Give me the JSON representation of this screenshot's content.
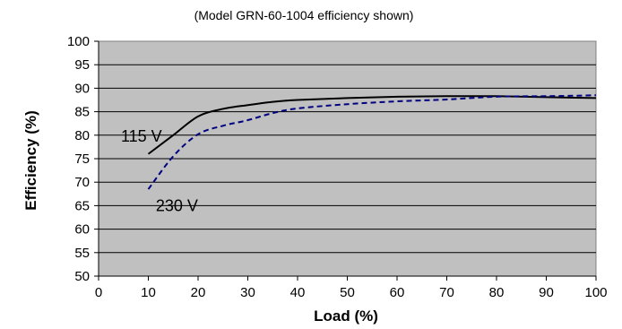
{
  "chart_data": {
    "type": "line",
    "title": "",
    "subtitle": "(Model GRN-60-1004 efficiency shown)",
    "xlabel": "Load (%)",
    "ylabel": "Efficiency (%)",
    "xlim": [
      0,
      100
    ],
    "ylim": [
      50,
      100
    ],
    "x_ticks": [
      0,
      10,
      20,
      30,
      40,
      50,
      60,
      70,
      80,
      90,
      100
    ],
    "y_ticks": [
      50,
      55,
      60,
      65,
      70,
      75,
      80,
      85,
      90,
      95,
      100
    ],
    "grid": true,
    "plot_background": "#c0c0c0",
    "series": [
      {
        "name": "115 V",
        "color": "#000000",
        "style": "solid",
        "x": [
          10,
          15,
          20,
          25,
          30,
          35,
          40,
          50,
          60,
          70,
          80,
          90,
          100
        ],
        "y": [
          76,
          80,
          84,
          85.6,
          86.4,
          87.1,
          87.5,
          87.9,
          88.2,
          88.3,
          88.3,
          88.1,
          87.9
        ]
      },
      {
        "name": "230 V",
        "color": "#000080",
        "style": "dashed",
        "x": [
          10,
          15,
          20,
          25,
          30,
          35,
          40,
          50,
          60,
          70,
          80,
          90,
          100
        ],
        "y": [
          68.5,
          75.5,
          80.2,
          82,
          83.2,
          84.7,
          85.7,
          86.6,
          87.2,
          87.6,
          88.2,
          88.3,
          88.5
        ]
      }
    ]
  }
}
